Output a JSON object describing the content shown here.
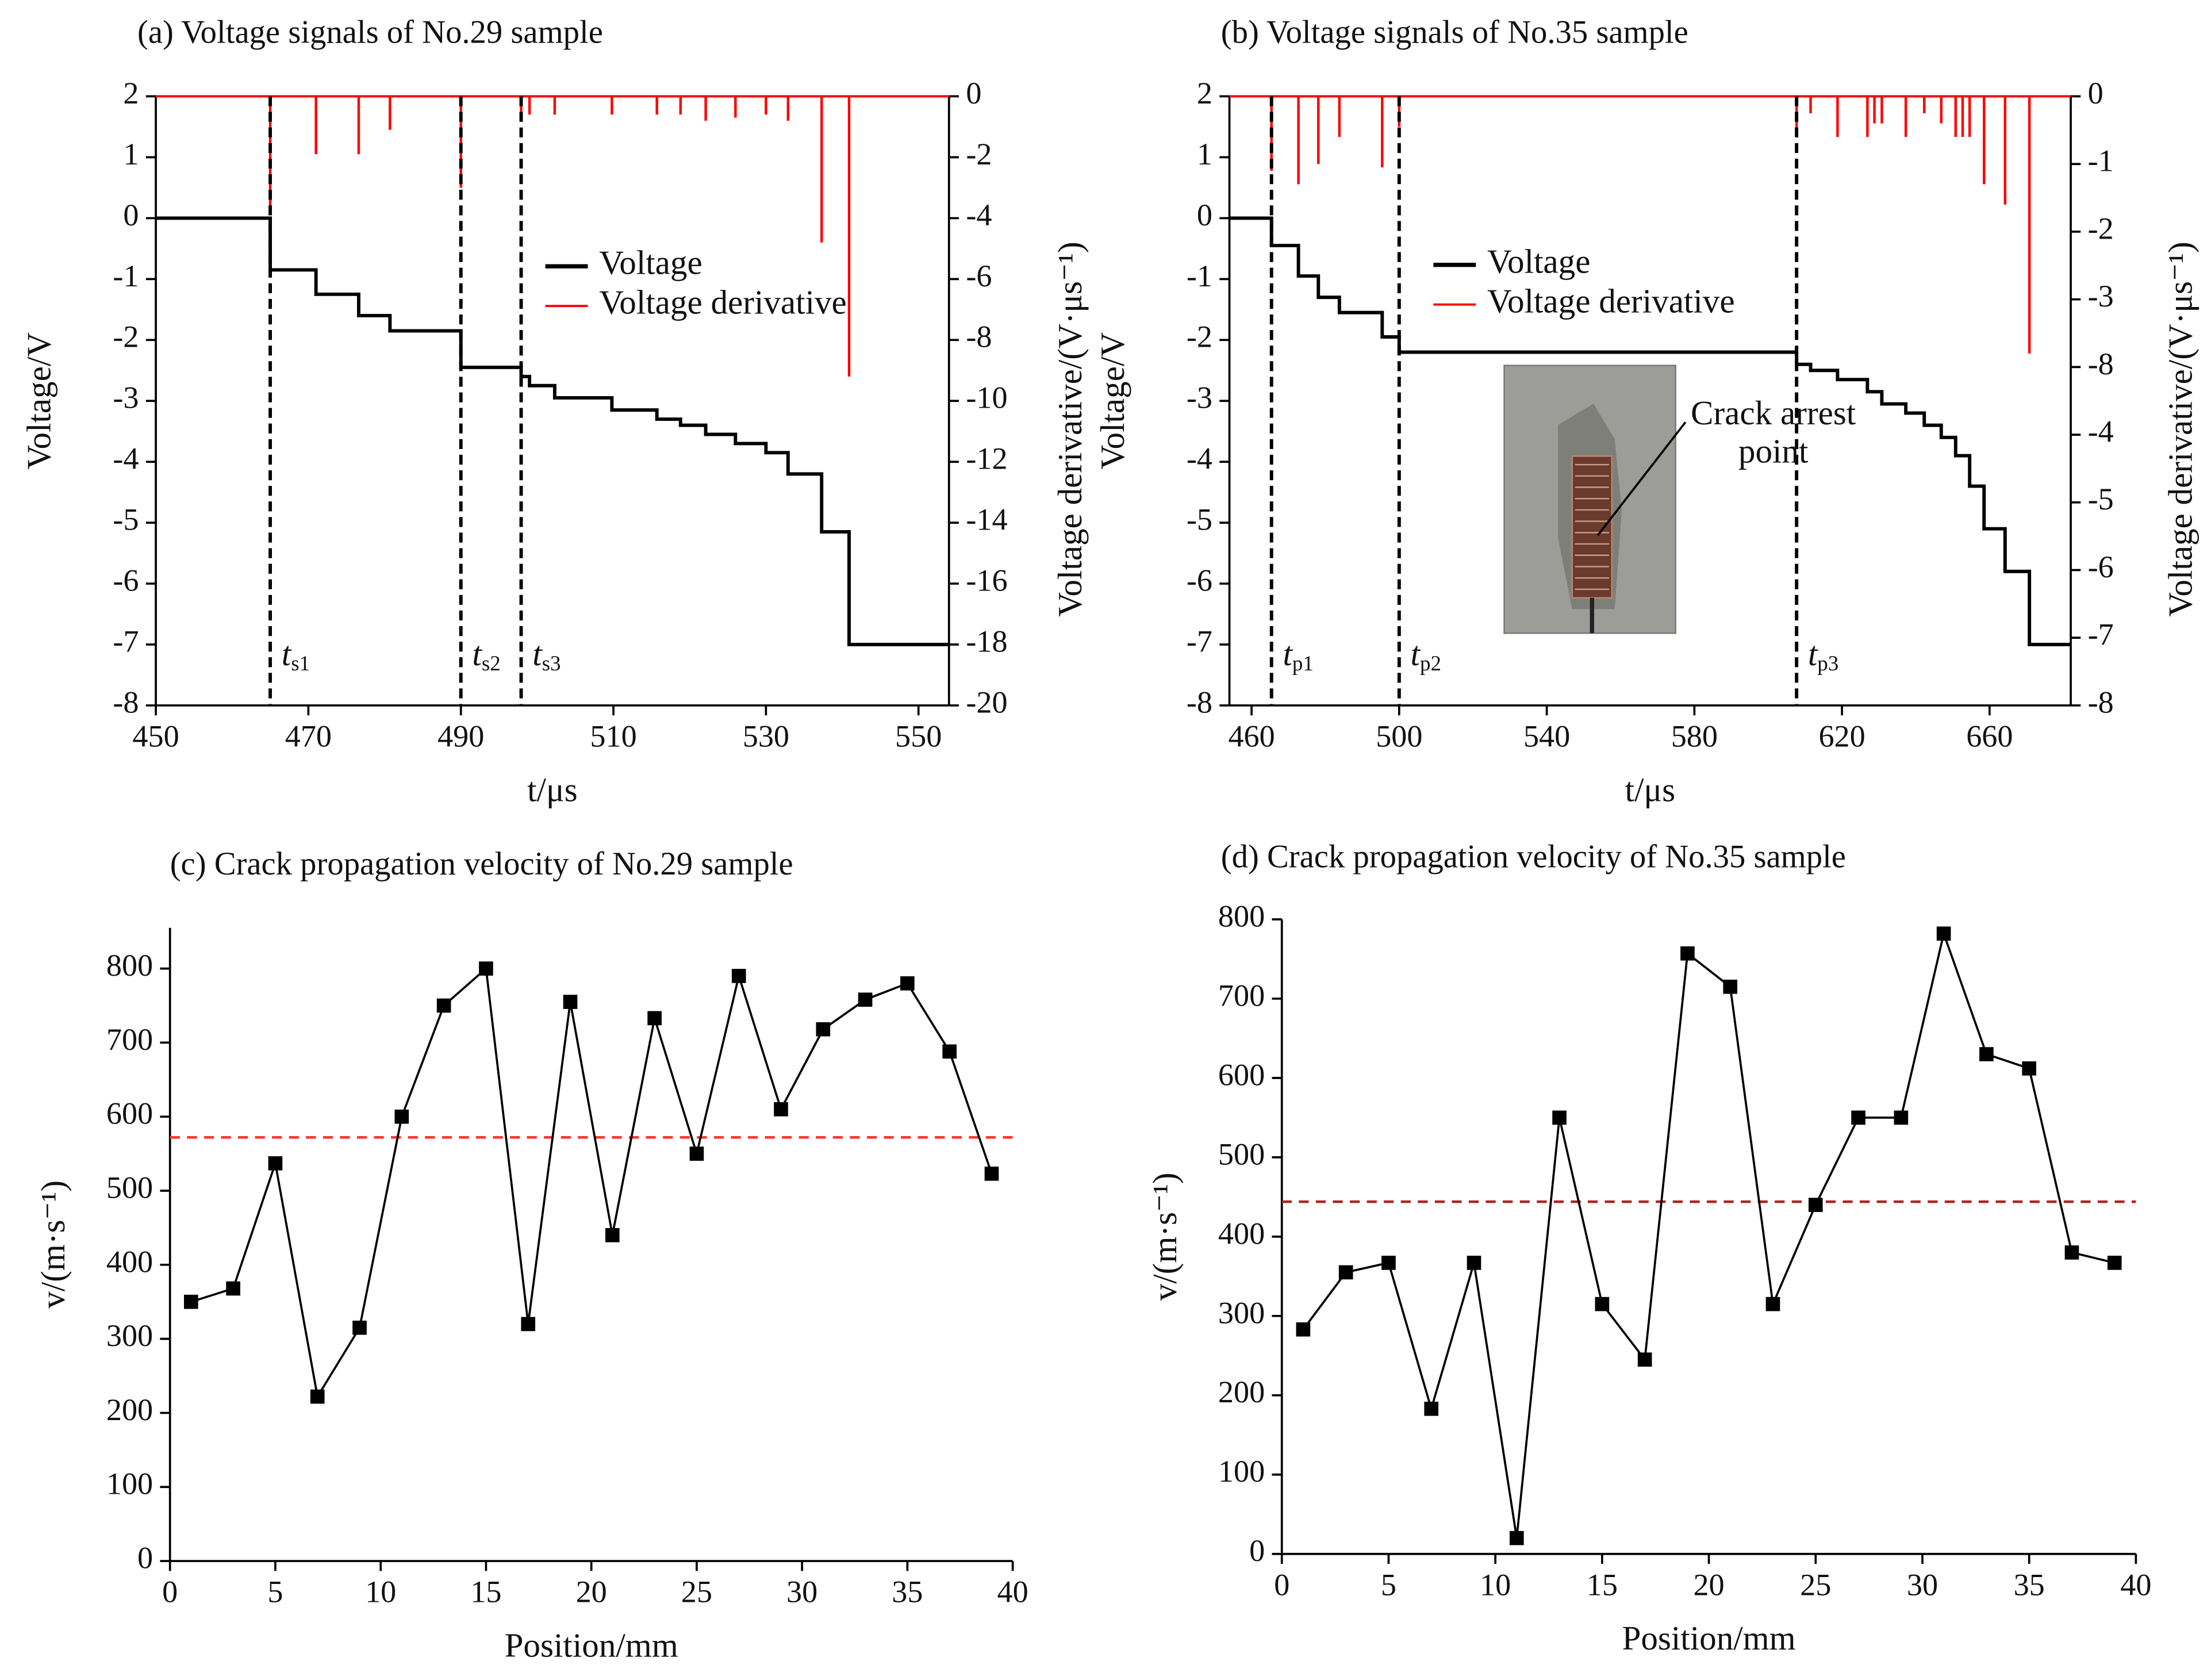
{
  "chart_data": [
    {
      "type": "line",
      "title": "(a) Voltage signals of No.29 sample",
      "x_label": "t/μs",
      "y_label": "Voltage/V",
      "y2_label": "Voltage derivative/(V·μs⁻¹)",
      "xlim": [
        450,
        554
      ],
      "xticks": [
        450,
        470,
        490,
        510,
        530,
        550
      ],
      "ylim": [
        -8,
        2
      ],
      "yticks": [
        2,
        1,
        0,
        -1,
        -2,
        -3,
        -4,
        -5,
        -6,
        -7,
        -8
      ],
      "y2lim": [
        -20,
        0
      ],
      "y2ticks": [
        0,
        -2,
        -4,
        -6,
        -8,
        -10,
        -12,
        -14,
        -16,
        -18,
        -20
      ],
      "series": [
        {
          "name": "Voltage",
          "color": "#000000",
          "style": "line",
          "x": [
            450,
            465,
            465,
            471,
            471,
            476.6,
            476.6,
            480.7,
            480.7,
            490,
            490,
            497.9,
            497.9,
            499,
            499,
            502.3,
            502.3,
            509.8,
            509.8,
            515.7,
            515.7,
            518.8,
            518.8,
            522.1,
            522.1,
            526,
            526,
            530,
            530,
            532.9,
            532.9,
            537.3,
            537.3,
            540.9,
            540.9,
            554
          ],
          "values": [
            0,
            0,
            -0.85,
            -0.85,
            -1.25,
            -1.25,
            -1.6,
            -1.6,
            -1.85,
            -1.85,
            -2.45,
            -2.45,
            -2.6,
            -2.6,
            -2.75,
            -2.75,
            -2.95,
            -2.95,
            -3.15,
            -3.15,
            -3.3,
            -3.3,
            -3.4,
            -3.4,
            -3.55,
            -3.55,
            -3.7,
            -3.7,
            -3.85,
            -3.85,
            -4.2,
            -4.2,
            -5.15,
            -5.15,
            -7,
            -7
          ]
        },
        {
          "name": "Voltage derivative",
          "color": "#ff0000",
          "style": "spike",
          "axis": "y2",
          "x": [
            465,
            471,
            476.6,
            480.7,
            490,
            497.9,
            499,
            502.3,
            509.8,
            515.7,
            518.8,
            522.1,
            526,
            530,
            532.9,
            537.3,
            540.9
          ],
          "values": [
            -3.6,
            -1.9,
            -1.9,
            -1.1,
            -3,
            -0.6,
            -0.6,
            -0.6,
            -0.6,
            -0.6,
            -0.6,
            -0.8,
            -0.7,
            -0.6,
            -0.8,
            -4.8,
            -9.2
          ]
        }
      ],
      "markers": [
        {
          "x": 465,
          "text": "t",
          "subscript": "s1"
        },
        {
          "x": 490,
          "text": "t",
          "subscript": "s2"
        },
        {
          "x": 497.9,
          "text": "t",
          "subscript": "s3"
        }
      ]
    },
    {
      "type": "line",
      "title": "(b) Voltage signals of No.35 sample",
      "x_label": "t/μs",
      "y_label": "Voltage/V",
      "y2_label": "Voltage derivative/(V·μs⁻¹)",
      "xlim": [
        454,
        682
      ],
      "xticks": [
        460,
        500,
        540,
        580,
        620,
        660
      ],
      "ylim": [
        -8,
        2
      ],
      "yticks": [
        2,
        1,
        0,
        -1,
        -2,
        -3,
        -4,
        -5,
        -6,
        -7,
        -8
      ],
      "y2lim": [
        -9,
        0
      ],
      "y2ticks": [
        0,
        -1,
        -2,
        -3,
        {
          "value": -4,
          "label": "-8"
        },
        {
          "value": -5,
          "label": "-4"
        },
        {
          "value": -6,
          "label": "-5"
        },
        {
          "value": -7,
          "label": "-6"
        },
        {
          "value": -8,
          "label": "-7"
        },
        {
          "value": -9,
          "label": "-8"
        }
      ],
      "series": [
        {
          "name": "Voltage",
          "color": "#000000",
          "style": "line",
          "x": [
            454,
            465.4,
            465.4,
            472.7,
            472.7,
            478.1,
            478.1,
            483.8,
            483.8,
            495.4,
            495.4,
            500,
            500,
            607.7,
            607.7,
            611.5,
            611.5,
            618.8,
            618.8,
            626.9,
            626.9,
            630.8,
            630.8,
            637.3,
            637.3,
            642.3,
            642.3,
            646.9,
            646.9,
            650.8,
            650.8,
            654.6,
            654.6,
            658.5,
            658.5,
            664.2,
            664.2,
            670.8,
            670.8,
            682
          ],
          "values": [
            0,
            0,
            -0.45,
            -0.45,
            -0.95,
            -0.95,
            -1.3,
            -1.3,
            -1.55,
            -1.55,
            -1.95,
            -1.95,
            -2.2,
            -2.2,
            -2.4,
            -2.4,
            -2.5,
            -2.5,
            -2.65,
            -2.65,
            -2.85,
            -2.85,
            -3.05,
            -3.05,
            -3.2,
            -3.2,
            -3.4,
            -3.4,
            -3.6,
            -3.6,
            -3.9,
            -3.9,
            -4.4,
            -4.4,
            -5.1,
            -5.1,
            -5.8,
            -5.8,
            -7,
            -7
          ]
        },
        {
          "name": "Voltage derivative",
          "color": "#ff0000",
          "style": "spike",
          "axis": "y2",
          "x": [
            465.4,
            472.7,
            478.1,
            483.8,
            495.4,
            500,
            607.7,
            611.5,
            618.8,
            626.9,
            628.8,
            630.8,
            637.3,
            642.3,
            646.9,
            650.8,
            652.7,
            654.6,
            658.5,
            664.2,
            670.8
          ],
          "values": [
            -1.1,
            -1.3,
            -1,
            -0.6,
            -1.05,
            -0.45,
            -0.55,
            -0.25,
            -0.6,
            -0.6,
            -0.4,
            -0.4,
            -0.6,
            -0.25,
            -0.4,
            -0.6,
            -0.6,
            -0.6,
            -1.3,
            -1.6,
            -3.8
          ]
        }
      ],
      "markers": [
        {
          "x": 465.4,
          "text": "t",
          "subscript": "p1"
        },
        {
          "x": 500,
          "text": "t",
          "subscript": "p2"
        },
        {
          "x": 607.7,
          "text": "t",
          "subscript": "p3"
        }
      ],
      "inset": {
        "lines": [
          "Crack arrest",
          "point"
        ]
      }
    },
    {
      "type": "line",
      "title": "(c) Crack propagation velocity of No.29 sample",
      "x_label": "Position/mm",
      "y_label": "v/(m·s⁻¹)",
      "xlim": [
        0,
        40
      ],
      "xticks": [
        0,
        5,
        10,
        15,
        20,
        25,
        30,
        35,
        40
      ],
      "ylim": [
        0,
        855
      ],
      "yticks": [
        0,
        100,
        200,
        300,
        400,
        500,
        600,
        700,
        800
      ],
      "series": [
        {
          "color": "#000000",
          "style": "line",
          "marker": "square",
          "x": [
            1,
            3,
            5,
            7,
            9,
            11,
            13,
            15,
            17,
            19,
            21,
            23,
            25,
            27,
            29,
            31,
            33,
            35,
            37,
            39
          ],
          "values": [
            350,
            368,
            537,
            222,
            315,
            600,
            750,
            800,
            320,
            755,
            440,
            733,
            550,
            790,
            610,
            718,
            758,
            780,
            688,
            523
          ]
        }
      ],
      "reference_line": {
        "y": 572,
        "color": "#ff3333"
      }
    },
    {
      "type": "line",
      "title": "(d) Crack propagation velocity of No.35 sample",
      "x_label": "Position/mm",
      "y_label": "v/(m·s⁻¹)",
      "xlim": [
        0,
        40
      ],
      "xticks": [
        0,
        5,
        10,
        15,
        20,
        25,
        30,
        35,
        40
      ],
      "ylim": [
        0,
        800
      ],
      "yticks": [
        0,
        100,
        200,
        300,
        400,
        500,
        600,
        700,
        800
      ],
      "series": [
        {
          "color": "#000000",
          "style": "line",
          "marker": "square",
          "x": [
            1,
            3,
            5,
            7,
            9,
            11,
            13,
            15,
            17,
            19,
            21,
            23,
            25,
            27,
            29,
            31,
            33,
            35,
            37,
            39
          ],
          "values": [
            283,
            355,
            367,
            183,
            367,
            20,
            550,
            315,
            245,
            757,
            715,
            315,
            440,
            550,
            550,
            782,
            630,
            612,
            380,
            367
          ]
        }
      ],
      "reference_line": {
        "y": 444,
        "color": "#b22222"
      }
    }
  ]
}
